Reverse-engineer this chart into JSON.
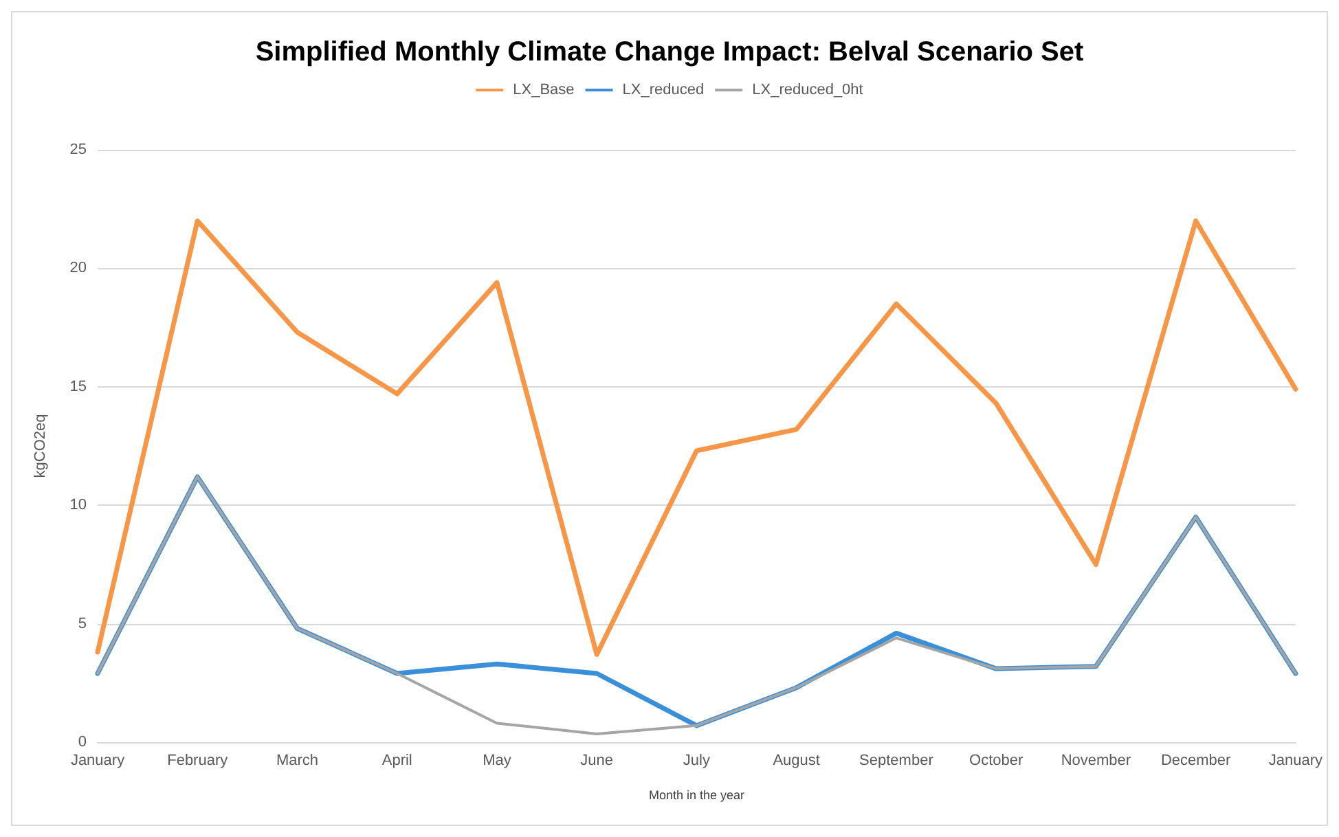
{
  "chart_data": {
    "type": "line",
    "title": "Simplified Monthly Climate Change Impact: Belval Scenario Set",
    "xlabel": "Month in the year",
    "ylabel": "kgCO2eq",
    "categories": [
      "January",
      "February",
      "March",
      "April",
      "May",
      "June",
      "July",
      "August",
      "September",
      "October",
      "November",
      "December",
      "January"
    ],
    "series": [
      {
        "name": "LX_Base",
        "color": "#f79646",
        "values": [
          3.8,
          22.0,
          17.3,
          14.7,
          19.4,
          3.7,
          12.3,
          13.2,
          18.5,
          14.3,
          7.5,
          22.0,
          14.9
        ]
      },
      {
        "name": "LX_reduced",
        "color": "#3a8fd9",
        "values": [
          2.9,
          11.2,
          4.8,
          2.9,
          3.3,
          2.9,
          0.7,
          2.3,
          4.6,
          3.1,
          3.2,
          9.5,
          2.9
        ]
      },
      {
        "name": "LX_reduced_0ht",
        "color": "#a5a5a5",
        "values": [
          2.9,
          11.2,
          4.8,
          2.9,
          0.8,
          0.35,
          0.7,
          2.3,
          4.4,
          3.1,
          3.2,
          9.5,
          2.9
        ]
      }
    ],
    "ylim": [
      0,
      25
    ],
    "yticks": [
      0,
      5,
      10,
      15,
      20,
      25
    ],
    "grid": "y",
    "legend": "top",
    "marker": "none",
    "line_style": "solid"
  }
}
